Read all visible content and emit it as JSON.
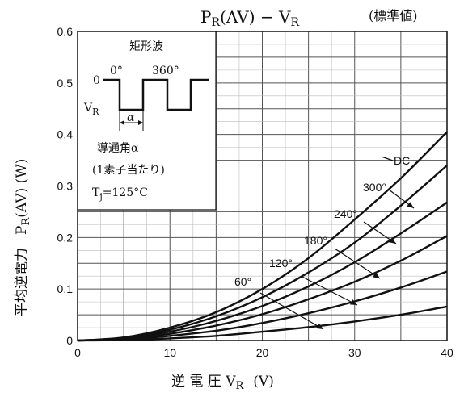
{
  "chart_data": {
    "type": "line",
    "title_main": "P",
    "title_sub": "R",
    "title_rest": "(AV) − V",
    "title_sub2": "R",
    "subtitle": "(標準値)",
    "xlabel_main": "逆 電 圧  V",
    "xlabel_sub": "R",
    "xlabel_unit": "(V)",
    "ylabel_jp": "平均逆電力",
    "ylabel_sym": "P",
    "ylabel_sub": "R",
    "ylabel_rest": "(AV)   (W)",
    "xlim": [
      0,
      40
    ],
    "ylim": [
      0,
      0.6
    ],
    "x_ticks": [
      "0",
      "10",
      "20",
      "30",
      "40"
    ],
    "y_ticks": [
      "0",
      "0.1",
      "0.2",
      "0.3",
      "0.4",
      "0.5",
      "0.6"
    ],
    "grid": true,
    "x": [
      0,
      5,
      10,
      15,
      20,
      25,
      30,
      35,
      40
    ],
    "series": [
      {
        "name": "DC",
        "values": [
          0,
          0.006,
          0.025,
          0.055,
          0.1,
          0.16,
          0.235,
          0.315,
          0.405
        ]
      },
      {
        "name": "300°",
        "values": [
          0,
          0.005,
          0.021,
          0.047,
          0.084,
          0.132,
          0.19,
          0.262,
          0.34
        ]
      },
      {
        "name": "240°",
        "values": [
          0,
          0.004,
          0.017,
          0.038,
          0.067,
          0.105,
          0.152,
          0.208,
          0.268
        ]
      },
      {
        "name": "180°",
        "values": [
          0,
          0.003,
          0.013,
          0.029,
          0.051,
          0.08,
          0.114,
          0.155,
          0.203
        ]
      },
      {
        "name": "120°",
        "values": [
          0,
          0.002,
          0.009,
          0.019,
          0.034,
          0.053,
          0.076,
          0.103,
          0.134
        ]
      },
      {
        "name": "60°",
        "values": [
          0,
          0.001,
          0.004,
          0.009,
          0.017,
          0.026,
          0.037,
          0.05,
          0.066
        ]
      }
    ],
    "annotations": [
      {
        "label": "DC"
      },
      {
        "label": "300°"
      },
      {
        "label": "240°"
      },
      {
        "label": "180°"
      },
      {
        "label": "120°"
      },
      {
        "label": "60°"
      }
    ],
    "inset": {
      "title": "矩形波",
      "zero_label": "0",
      "deg0": "0°",
      "deg360": "360°",
      "vr_main": "V",
      "vr_sub": "R",
      "alpha": "α",
      "conduction": "導通角α",
      "per_element": "(1素子当たり)",
      "tj_main": "T",
      "tj_sub": "j",
      "tj_rest": "=125°C"
    }
  }
}
